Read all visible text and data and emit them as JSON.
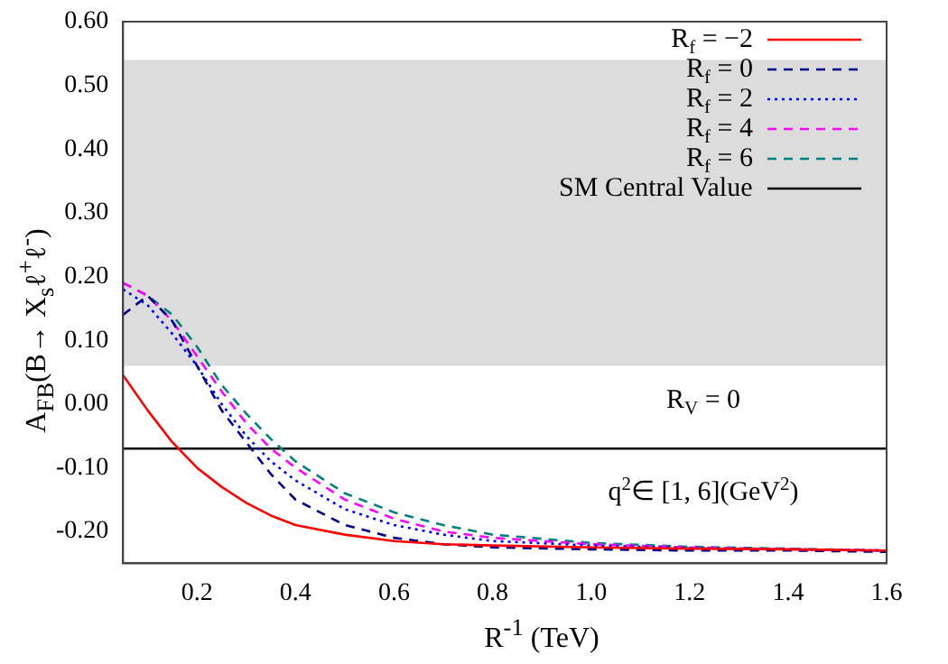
{
  "chart_data": {
    "type": "line",
    "xlabel": "R$^{-1}$ (TeV)",
    "ylabel": "A$_{FB}$(B→ X$_{s}$ℓ$^{+}$ℓ$^{-}$)",
    "x": [
      0.05,
      0.1,
      0.15,
      0.2,
      0.25,
      0.3,
      0.35,
      0.4,
      0.5,
      0.6,
      0.7,
      0.8,
      1.0,
      1.2,
      1.4,
      1.6
    ],
    "series": [
      {
        "name": "R$_{f}$ = −2",
        "color": "#ff0000",
        "line_style": "solid",
        "values": [
          0.045,
          -0.01,
          -0.06,
          -0.1,
          -0.13,
          -0.155,
          -0.175,
          -0.19,
          -0.205,
          -0.215,
          -0.22,
          -0.222,
          -0.225,
          -0.227,
          -0.228,
          -0.23
        ]
      },
      {
        "name": "R$_{f}$ = 0",
        "color": "#00008b",
        "line_style": "dashed",
        "values": [
          0.14,
          0.17,
          0.13,
          0.06,
          -0.01,
          -0.06,
          -0.11,
          -0.15,
          -0.19,
          -0.21,
          -0.22,
          -0.225,
          -0.228,
          -0.23,
          -0.23,
          -0.232
        ]
      },
      {
        "name": "R$_{f}$ = 2",
        "color": "#0000ff",
        "line_style": "dotted",
        "values": [
          0.18,
          0.155,
          0.11,
          0.06,
          0.0,
          -0.05,
          -0.09,
          -0.12,
          -0.165,
          -0.19,
          -0.205,
          -0.215,
          -0.222,
          -0.226,
          -0.228,
          -0.23
        ]
      },
      {
        "name": "R$_{f}$ = 4",
        "color": "#ff00ff",
        "line_style": "dashed",
        "values": [
          0.19,
          0.17,
          0.13,
          0.075,
          0.02,
          -0.03,
          -0.07,
          -0.1,
          -0.15,
          -0.18,
          -0.2,
          -0.21,
          -0.22,
          -0.225,
          -0.228,
          -0.23
        ]
      },
      {
        "name": "R$_{f}$ = 6",
        "color": "#008080",
        "line_style": "dashed",
        "values": [
          0.19,
          0.17,
          0.14,
          0.09,
          0.03,
          -0.015,
          -0.055,
          -0.09,
          -0.14,
          -0.17,
          -0.19,
          -0.205,
          -0.218,
          -0.224,
          -0.227,
          -0.23
        ]
      }
    ],
    "xlim": [
      0.05,
      1.6
    ],
    "xticks": [
      0.2,
      0.4,
      0.6,
      0.8,
      {
        "value": 1,
        "label": "1.0"
      },
      1.2,
      1.4,
      1.6
    ],
    "ylim": [
      -0.25,
      0.6
    ],
    "yticks": [
      {
        "value": -0.2,
        "label": "-0.20"
      },
      {
        "value": -0.1,
        "label": "-0.10"
      },
      {
        "value": 0,
        "label": "0.00"
      },
      {
        "value": 0.1,
        "label": "0.10"
      },
      {
        "value": 0.2,
        "label": "0.20"
      },
      {
        "value": 0.3,
        "label": "0.30"
      },
      {
        "value": 0.4,
        "label": "0.40"
      },
      {
        "value": 0.5,
        "label": "0.50"
      },
      {
        "value": 0.6,
        "label": "0.60"
      }
    ],
    "ref_lines": [
      {
        "axis": "y",
        "value": -0.07,
        "label": "SM Central Value",
        "color": "#000000",
        "line_style": "solid"
      }
    ],
    "bands": [
      {
        "axis": "y",
        "from": 0.06,
        "to": 0.54,
        "color": "#dcdcdc"
      }
    ],
    "annotations": [
      "R$_{V}$ = 0",
      "q$^{2}$∈ [1, 6](GeV$^{2}$)"
    ],
    "grid": false,
    "legend": "top right",
    "marker": "none"
  }
}
